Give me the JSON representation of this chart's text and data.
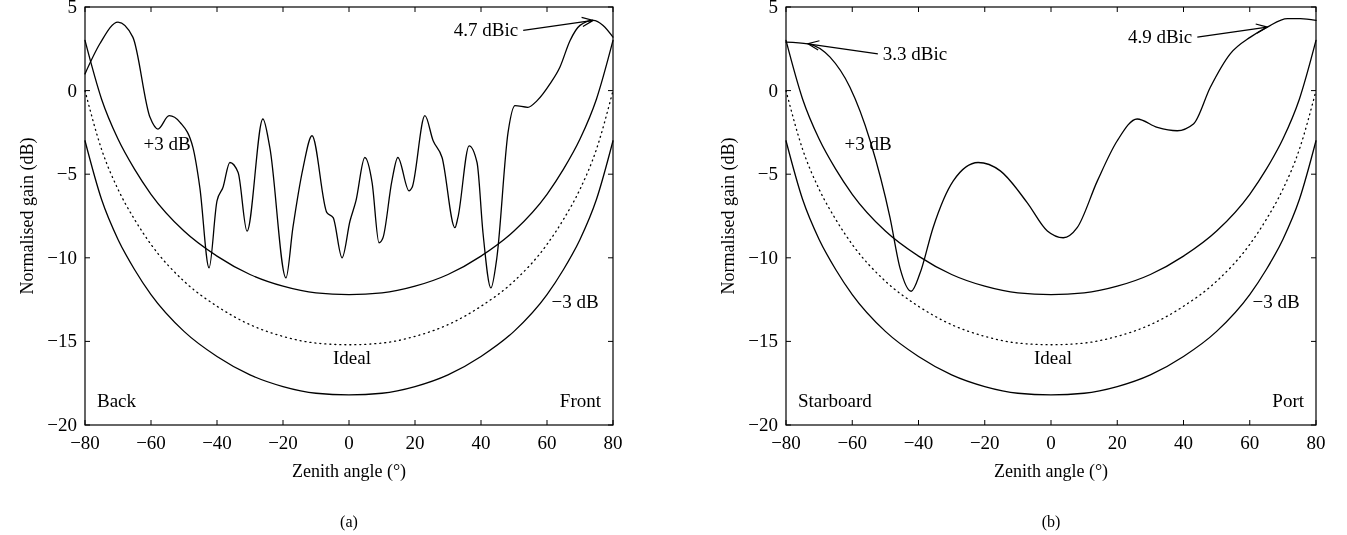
{
  "chart_data": [
    {
      "type": "line",
      "xlabel": "Zenith angle (°)",
      "ylabel": "Normalised gain (dB)",
      "xlim": [
        -80,
        80
      ],
      "xticks": [
        {
          "value": -80,
          "label": "−80"
        },
        {
          "value": -60,
          "label": "−60"
        },
        {
          "value": -40,
          "label": "−40"
        },
        {
          "value": -20,
          "label": "−20"
        },
        {
          "value": 0,
          "label": "0"
        },
        20,
        40,
        60,
        80
      ],
      "ylim": [
        -20,
        5
      ],
      "yticks": [
        {
          "value": -20,
          "label": "−20"
        },
        {
          "value": -15,
          "label": "−15"
        },
        {
          "value": -10,
          "label": "−10"
        },
        {
          "value": -5,
          "label": "−5"
        },
        {
          "value": 0,
          "label": "0"
        },
        5
      ],
      "series": [
        {
          "color": "#000000",
          "line_style": "solid",
          "x": [
            -80,
            -75.5,
            -70,
            -65.5,
            -60.3,
            -57.9,
            -54.5,
            -51.2,
            -47.3,
            -45.2,
            -42.4,
            -40,
            -38.2,
            -36.1,
            -33.6,
            -30.9,
            -26.1,
            -24,
            -19.1,
            -17,
            -13.9,
            -11.2,
            -6.7,
            -4.8,
            -2.1,
            0.3,
            2.1,
            4.8,
            7,
            9.1,
            10.3,
            13,
            14.8,
            18.2,
            19.1,
            23,
            25.5,
            28.2,
            32.1,
            33,
            36.4,
            38.8,
            40.6,
            43,
            44.8,
            48.2,
            50.3,
            54.2,
            57,
            60.9,
            63.9,
            67,
            70,
            74,
            77,
            80
          ],
          "values": [
            1.0,
            2.8,
            4.1,
            3.2,
            -1.6,
            -2.3,
            -1.5,
            -1.9,
            -3.4,
            -5.8,
            -10.6,
            -6.6,
            -5.8,
            -4.3,
            -4.9,
            -8.4,
            -1.7,
            -3.4,
            -11.2,
            -8.2,
            -4.6,
            -2.7,
            -7.3,
            -7.6,
            -10.0,
            -7.8,
            -6.6,
            -4.0,
            -5.5,
            -9.1,
            -8.8,
            -5.4,
            -4.0,
            -6.0,
            -5.8,
            -1.5,
            -3.0,
            -4.0,
            -8.2,
            -7.6,
            -3.3,
            -4.3,
            -8.5,
            -11.8,
            -10.0,
            -2.5,
            -0.9,
            -1.0,
            -0.6,
            0.4,
            1.4,
            3.0,
            3.9,
            4.2,
            3.9,
            3.2
          ]
        },
        {
          "name": "+3 dB",
          "color": "#000000",
          "line_style": "solid",
          "x": [
            -80,
            -75,
            -70,
            -65,
            -60,
            -50,
            -40,
            -30,
            -20,
            -10,
            0,
            10,
            20,
            30,
            40,
            50,
            60,
            65,
            70,
            75,
            80
          ],
          "values": [
            3.0,
            -0.5,
            -2.9,
            -4.7,
            -6.2,
            -8.4,
            -9.9,
            -11.0,
            -11.7,
            -12.1,
            -12.2,
            -12.1,
            -11.7,
            -11.0,
            -9.9,
            -8.4,
            -6.2,
            -4.7,
            -2.9,
            -0.5,
            3.0
          ]
        },
        {
          "name": "Ideal",
          "color": "#000000",
          "line_style": "dotted",
          "x": [
            -80,
            -75,
            -70,
            -65,
            -60,
            -50,
            -40,
            -30,
            -20,
            -10,
            0,
            10,
            20,
            30,
            40,
            50,
            60,
            65,
            70,
            75,
            80
          ],
          "values": [
            0.0,
            -3.5,
            -5.9,
            -7.7,
            -9.2,
            -11.4,
            -12.9,
            -14.0,
            -14.7,
            -15.1,
            -15.2,
            -15.1,
            -14.7,
            -14.0,
            -12.9,
            -11.4,
            -9.2,
            -7.7,
            -5.9,
            -3.5,
            0.0
          ]
        },
        {
          "name": "−3 dB",
          "color": "#000000",
          "line_style": "solid",
          "x": [
            -80,
            -75,
            -70,
            -65,
            -60,
            -50,
            -40,
            -30,
            -20,
            -10,
            0,
            10,
            20,
            30,
            40,
            50,
            60,
            65,
            70,
            75,
            80
          ],
          "values": [
            -3.0,
            -6.5,
            -8.9,
            -10.7,
            -12.2,
            -14.4,
            -15.9,
            -17.0,
            -17.7,
            -18.1,
            -18.2,
            -18.1,
            -17.7,
            -17.0,
            -15.9,
            -14.4,
            -12.2,
            -10.7,
            -8.9,
            -6.5,
            -3.0
          ]
        }
      ],
      "annotations": [
        "Back",
        "Front",
        {
          "text": "4.7 dBic",
          "x": 74,
          "y": 4.2
        },
        "(a)"
      ]
    },
    {
      "type": "line",
      "xlabel": "Zenith angle (°)",
      "ylabel": "Normalised gain (dB)",
      "xlim": [
        -80,
        80
      ],
      "xticks": [
        {
          "value": -80,
          "label": "−80"
        },
        {
          "value": -60,
          "label": "−60"
        },
        {
          "value": -40,
          "label": "−40"
        },
        {
          "value": -20,
          "label": "−20"
        },
        {
          "value": 0,
          "label": "0"
        },
        20,
        40,
        60,
        80
      ],
      "ylim": [
        -20,
        5
      ],
      "yticks": [
        {
          "value": -20,
          "label": "−20"
        },
        {
          "value": -15,
          "label": "−15"
        },
        {
          "value": -10,
          "label": "−10"
        },
        {
          "value": -5,
          "label": "−5"
        },
        {
          "value": 0,
          "label": "0"
        },
        5
      ],
      "series": [
        {
          "color": "#000000",
          "line_style": "solid",
          "x": [
            -80,
            -73.4,
            -66.7,
            -60.7,
            -54.6,
            -48.6,
            -45.6,
            -42.2,
            -39.5,
            -35.6,
            -29.5,
            -22,
            -15.3,
            -7.2,
            -1.1,
            3.7,
            7.9,
            14,
            20,
            26,
            32.1,
            38.1,
            43,
            48.1,
            54.1,
            60.2,
            65.3,
            71.4,
            75.3,
            80
          ],
          "values": [
            2.9,
            2.8,
            2.0,
            0.2,
            -3.0,
            -7.6,
            -10.6,
            -12.0,
            -10.9,
            -8.2,
            -5.4,
            -4.3,
            -4.8,
            -6.7,
            -8.4,
            -8.8,
            -8.2,
            -5.4,
            -3.0,
            -1.7,
            -2.2,
            -2.4,
            -2.0,
            0.2,
            2.2,
            3.2,
            3.8,
            4.3,
            4.3,
            4.2
          ]
        },
        {
          "name": "+3 dB",
          "color": "#000000",
          "line_style": "solid",
          "x": [
            -80,
            -75,
            -70,
            -65,
            -60,
            -50,
            -40,
            -30,
            -20,
            -10,
            0,
            10,
            20,
            30,
            40,
            50,
            60,
            65,
            70,
            75,
            80
          ],
          "values": [
            3.0,
            -0.5,
            -2.9,
            -4.7,
            -6.2,
            -8.4,
            -9.9,
            -11.0,
            -11.7,
            -12.1,
            -12.2,
            -12.1,
            -11.7,
            -11.0,
            -9.9,
            -8.4,
            -6.2,
            -4.7,
            -2.9,
            -0.5,
            3.0
          ]
        },
        {
          "name": "Ideal",
          "color": "#000000",
          "line_style": "dotted",
          "x": [
            -80,
            -75,
            -70,
            -65,
            -60,
            -50,
            -40,
            -30,
            -20,
            -10,
            0,
            10,
            20,
            30,
            40,
            50,
            60,
            65,
            70,
            75,
            80
          ],
          "values": [
            0.0,
            -3.5,
            -5.9,
            -7.7,
            -9.2,
            -11.4,
            -12.9,
            -14.0,
            -14.7,
            -15.1,
            -15.2,
            -15.1,
            -14.7,
            -14.0,
            -12.9,
            -11.4,
            -9.2,
            -7.7,
            -5.9,
            -3.5,
            0.0
          ]
        },
        {
          "name": "−3 dB",
          "color": "#000000",
          "line_style": "solid",
          "x": [
            -80,
            -75,
            -70,
            -65,
            -60,
            -50,
            -40,
            -30,
            -20,
            -10,
            0,
            10,
            20,
            30,
            40,
            50,
            60,
            65,
            70,
            75,
            80
          ],
          "values": [
            -3.0,
            -6.5,
            -8.9,
            -10.7,
            -12.2,
            -14.4,
            -15.9,
            -17.0,
            -17.7,
            -18.1,
            -18.2,
            -18.1,
            -17.7,
            -17.0,
            -15.9,
            -14.4,
            -12.2,
            -10.7,
            -8.9,
            -6.5,
            -3.0
          ]
        }
      ],
      "annotations": [
        "Starboard",
        "Port",
        {
          "text": "3.3 dBic",
          "x": -73.4,
          "y": 2.8
        },
        {
          "text": "4.9 dBic",
          "x": 65.3,
          "y": 3.8
        },
        "(b)"
      ]
    }
  ]
}
